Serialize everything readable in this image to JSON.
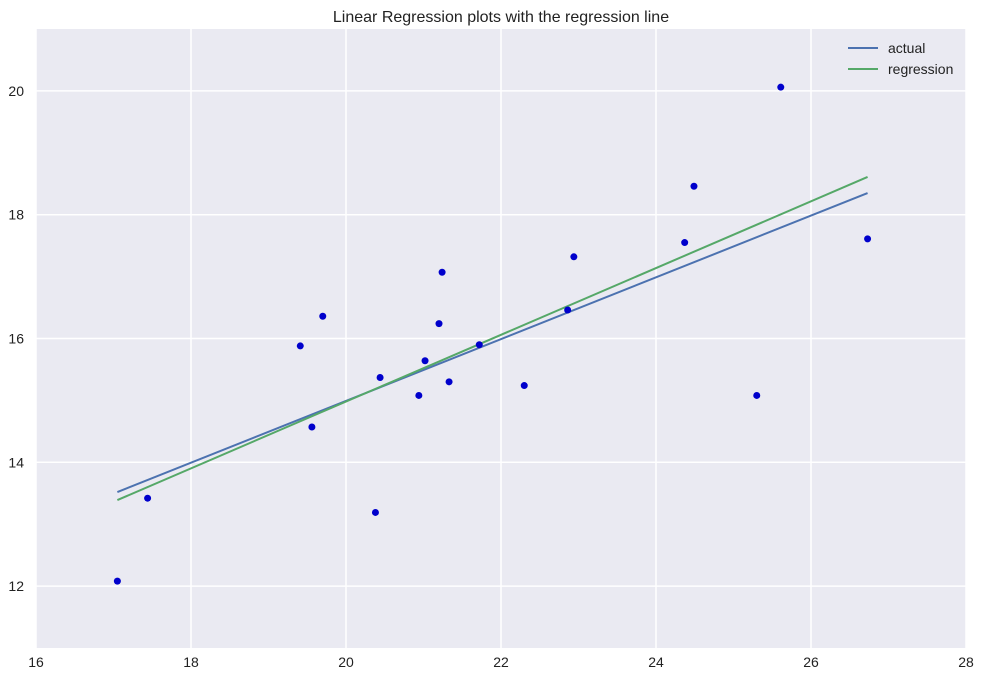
{
  "chart_data": {
    "type": "scatter",
    "title": "Linear Regression plots with the regression line",
    "xlabel": "",
    "ylabel": "",
    "xlim": [
      16,
      28
    ],
    "ylim": [
      11,
      21
    ],
    "x_ticks": [
      16,
      18,
      20,
      22,
      24,
      26,
      28
    ],
    "y_ticks": [
      12,
      14,
      16,
      18,
      20
    ],
    "grid": true,
    "legend_position": "top-right",
    "colors": {
      "background": "#eaeaf2",
      "grid": "#ffffff",
      "points": "#0000cc",
      "actual": "#4c72b0",
      "regression": "#55a868"
    },
    "points": [
      {
        "x": 17.05,
        "y": 12.08
      },
      {
        "x": 17.44,
        "y": 13.42
      },
      {
        "x": 19.41,
        "y": 15.88
      },
      {
        "x": 19.56,
        "y": 14.57
      },
      {
        "x": 19.7,
        "y": 16.36
      },
      {
        "x": 20.38,
        "y": 13.19
      },
      {
        "x": 20.44,
        "y": 15.37
      },
      {
        "x": 20.94,
        "y": 15.08
      },
      {
        "x": 21.02,
        "y": 15.64
      },
      {
        "x": 21.2,
        "y": 16.24
      },
      {
        "x": 21.24,
        "y": 17.07
      },
      {
        "x": 21.33,
        "y": 15.3
      },
      {
        "x": 21.72,
        "y": 15.9
      },
      {
        "x": 22.3,
        "y": 15.24
      },
      {
        "x": 22.86,
        "y": 16.46
      },
      {
        "x": 22.94,
        "y": 17.32
      },
      {
        "x": 24.37,
        "y": 17.55
      },
      {
        "x": 24.49,
        "y": 18.46
      },
      {
        "x": 25.3,
        "y": 15.08
      },
      {
        "x": 25.61,
        "y": 20.06
      },
      {
        "x": 26.73,
        "y": 17.61
      }
    ],
    "series": [
      {
        "name": "actual",
        "x": [
          17.05,
          26.73
        ],
        "y": [
          13.52,
          18.35
        ]
      },
      {
        "name": "regression",
        "x": [
          17.05,
          26.73
        ],
        "y": [
          13.39,
          18.61
        ]
      }
    ]
  }
}
